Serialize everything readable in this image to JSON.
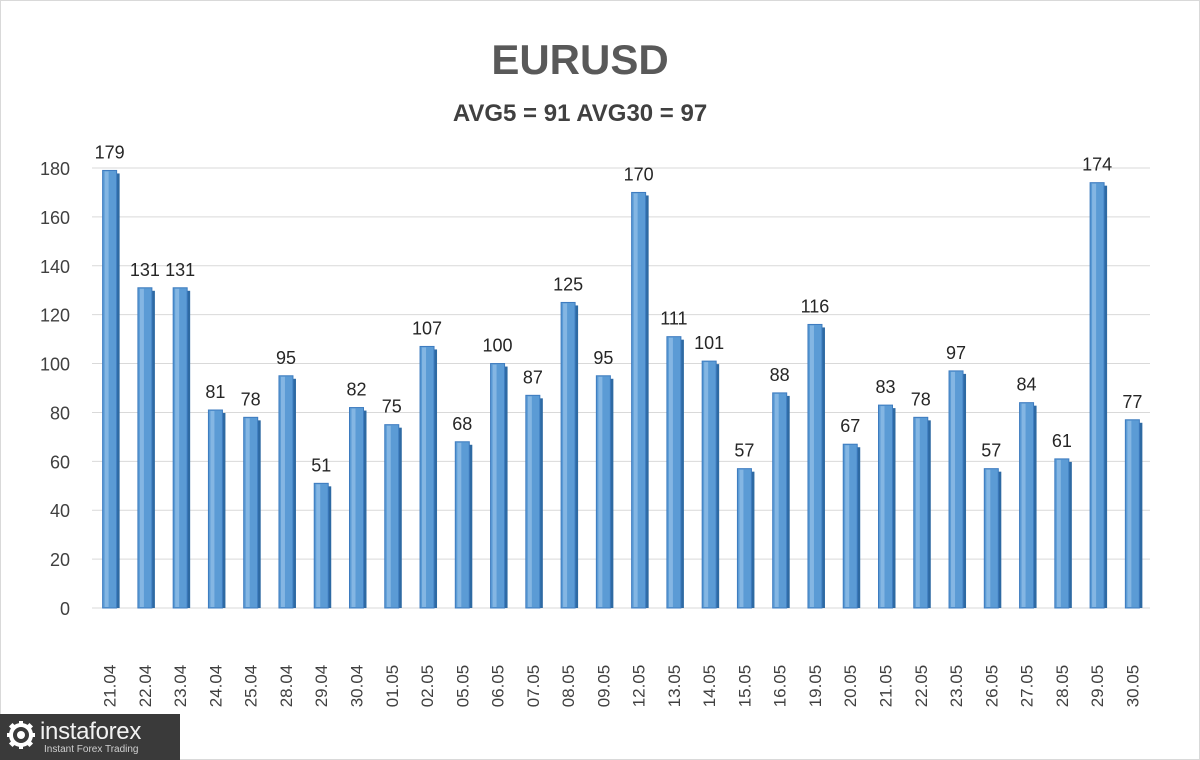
{
  "chart_data": {
    "type": "bar",
    "title": "EURUSD",
    "subtitle": "AVG5 = 91 AVG30 = 97",
    "categories": [
      "21.04",
      "22.04",
      "23.04",
      "24.04",
      "25.04",
      "28.04",
      "29.04",
      "30.04",
      "01.05",
      "02.05",
      "05.05",
      "06.05",
      "07.05",
      "08.05",
      "09.05",
      "12.05",
      "13.05",
      "14.05",
      "15.05",
      "16.05",
      "19.05",
      "20.05",
      "21.05",
      "22.05",
      "23.05",
      "26.05",
      "27.05",
      "28.05",
      "29.05",
      "30.05"
    ],
    "values": [
      179,
      131,
      131,
      81,
      78,
      95,
      51,
      82,
      75,
      107,
      68,
      100,
      87,
      125,
      95,
      170,
      111,
      101,
      57,
      88,
      116,
      67,
      83,
      78,
      97,
      57,
      84,
      61,
      174,
      77
    ],
    "ylim": [
      0,
      180
    ],
    "yticks": [
      0,
      20,
      40,
      60,
      80,
      100,
      120,
      140,
      160,
      180
    ],
    "grid": true,
    "bar_color": "#5b9bd5",
    "data_labels": true
  },
  "logo": {
    "name": "instaforex",
    "tagline": "Instant Forex Trading"
  }
}
